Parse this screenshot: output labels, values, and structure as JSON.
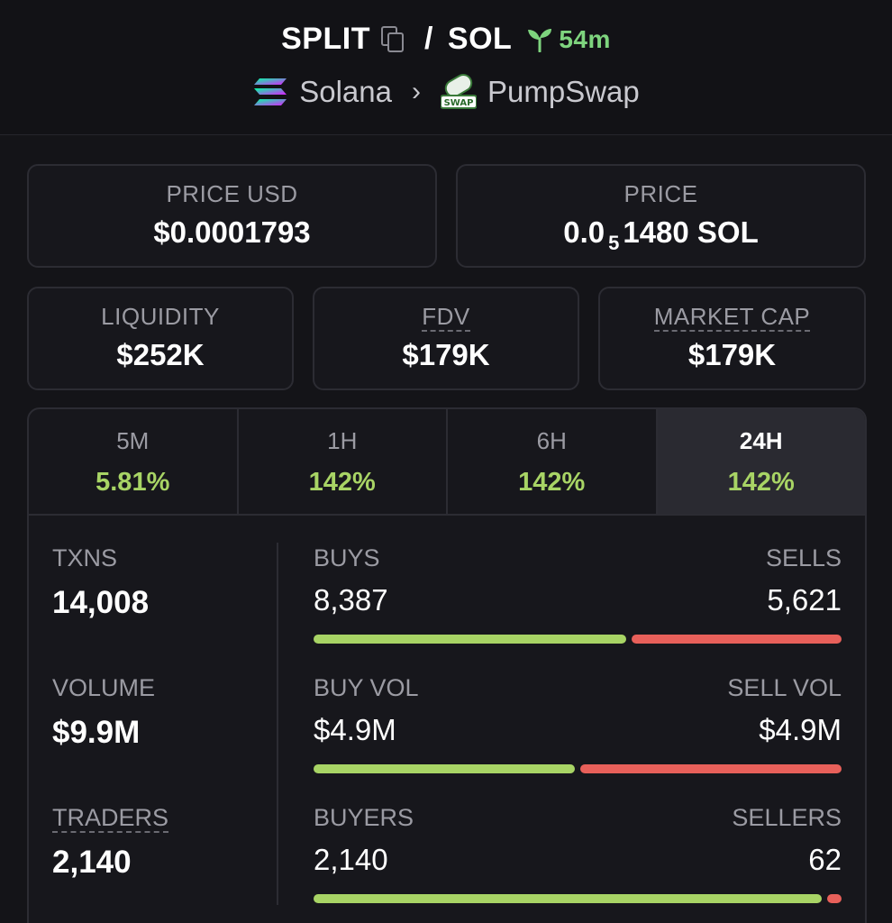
{
  "header": {
    "symbol": "SPLIT",
    "separator": "/",
    "quote": "SOL",
    "age": "54m",
    "chain": "Solana",
    "dex": "PumpSwap",
    "dex_badge": "SWAP"
  },
  "price_usd": {
    "label": "PRICE USD",
    "value": "$0.0001793"
  },
  "price_native": {
    "label": "PRICE",
    "prefix": "0.0",
    "zeros": "5",
    "digits": "1480 SOL"
  },
  "liquidity": {
    "label": "LIQUIDITY",
    "value": "$252K"
  },
  "fdv": {
    "label": "FDV",
    "value": "$179K"
  },
  "market_cap": {
    "label": "MARKET CAP",
    "value": "$179K"
  },
  "tabs": [
    {
      "label": "5M",
      "value": "5.81%"
    },
    {
      "label": "1H",
      "value": "142%"
    },
    {
      "label": "6H",
      "value": "142%"
    },
    {
      "label": "24H",
      "value": "142%"
    }
  ],
  "active_tab": "24H",
  "txns": {
    "label": "TXNS",
    "value": "14,008"
  },
  "volume": {
    "label": "VOLUME",
    "value": "$9.9M"
  },
  "traders": {
    "label": "TRADERS",
    "value": "2,140"
  },
  "buys": {
    "label": "BUYS",
    "value": "8,387",
    "sell_label": "SELLS",
    "sell_value": "5,621",
    "buy_fraction": 0.599
  },
  "buy_vol": {
    "label": "BUY VOL",
    "value": "$4.9M",
    "sell_label": "SELL VOL",
    "sell_value": "$4.9M",
    "buy_fraction": 0.5
  },
  "buyers": {
    "label": "BUYERS",
    "value": "2,140",
    "sell_label": "SELLERS",
    "sell_value": "62",
    "buy_fraction": 0.972
  },
  "colors": {
    "positive": "#a8d465",
    "negative": "#e8605a",
    "accent_green": "#7ed47e"
  }
}
